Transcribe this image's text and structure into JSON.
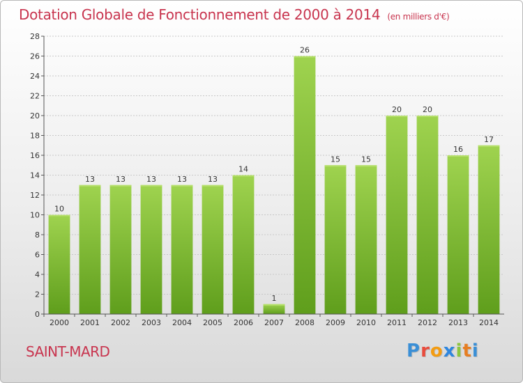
{
  "chart_data": {
    "type": "bar",
    "title": "Dotation Globale de Fonctionnement de 2000 à 2014",
    "subtitle": "(en milliers d'€)",
    "categories": [
      "2000",
      "2001",
      "2002",
      "2003",
      "2004",
      "2005",
      "2006",
      "2007",
      "2008",
      "2009",
      "2010",
      "2011",
      "2012",
      "2013",
      "2014"
    ],
    "values": [
      10,
      13,
      13,
      13,
      13,
      13,
      14,
      1,
      26,
      15,
      15,
      20,
      20,
      16,
      17
    ],
    "xlabel": "",
    "ylabel": "",
    "ylim": [
      0,
      28
    ],
    "yticks": [
      0,
      2,
      4,
      6,
      8,
      10,
      12,
      14,
      16,
      18,
      20,
      22,
      24,
      26,
      28
    ],
    "grid": true,
    "bar_color": "#8cc63f"
  },
  "place_name": "SAINT-MARD",
  "logo": {
    "letters": [
      "P",
      "r",
      "o",
      "x",
      "i",
      "t",
      "i"
    ],
    "colors": [
      "#3a8fd6",
      "#e84c3d",
      "#f39c12",
      "#2e86de",
      "#8cc63f",
      "#e67e22",
      "#3a8fd6"
    ]
  }
}
